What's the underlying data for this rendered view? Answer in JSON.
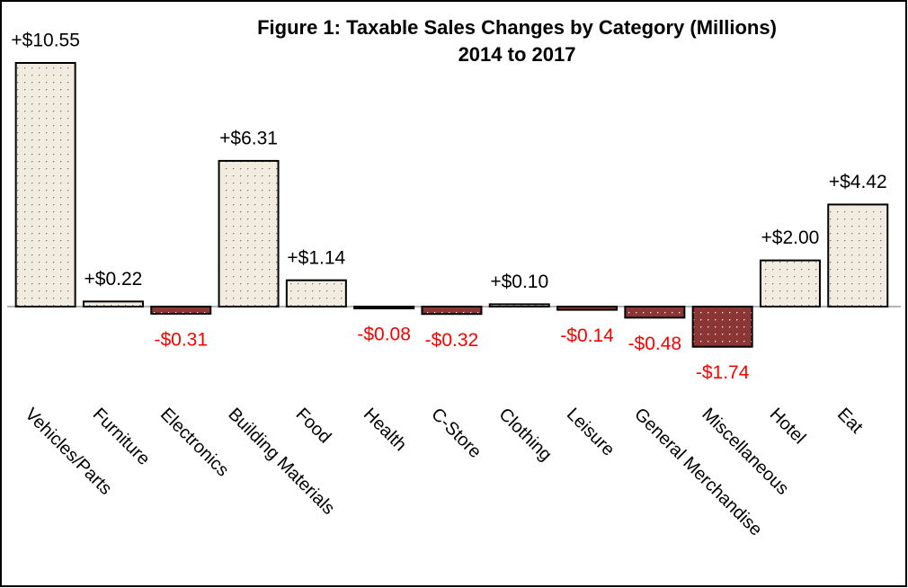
{
  "chart_data": {
    "type": "bar",
    "title": "Figure 1: Taxable Sales Changes by Category (Millions)",
    "subtitle": "2014 to 2017",
    "categories": [
      "Vehicles/Parts",
      "Furniture",
      "Electronics",
      "Building Materials",
      "Food",
      "Health",
      "C-Store",
      "Clothing",
      "Leisure",
      "General Merchandise",
      "Miscellaneous",
      "Hotel",
      "Eat"
    ],
    "values": [
      10.55,
      0.22,
      -0.31,
      6.31,
      1.14,
      -0.08,
      -0.32,
      0.1,
      -0.14,
      -0.48,
      -1.74,
      2.0,
      4.42
    ],
    "value_labels": [
      "+$10.55",
      "+$0.22",
      "-$0.31",
      "+$6.31",
      "+$1.14",
      "-$0.08",
      "-$0.32",
      "+$0.10",
      "-$0.14",
      "-$0.48",
      "-$1.74",
      "+$2.00",
      "+$4.42"
    ],
    "positive_color": "#f2ece0",
    "negative_color": "#8b3535",
    "positive_label_color": "#000000",
    "negative_label_color": "#ff0000"
  }
}
